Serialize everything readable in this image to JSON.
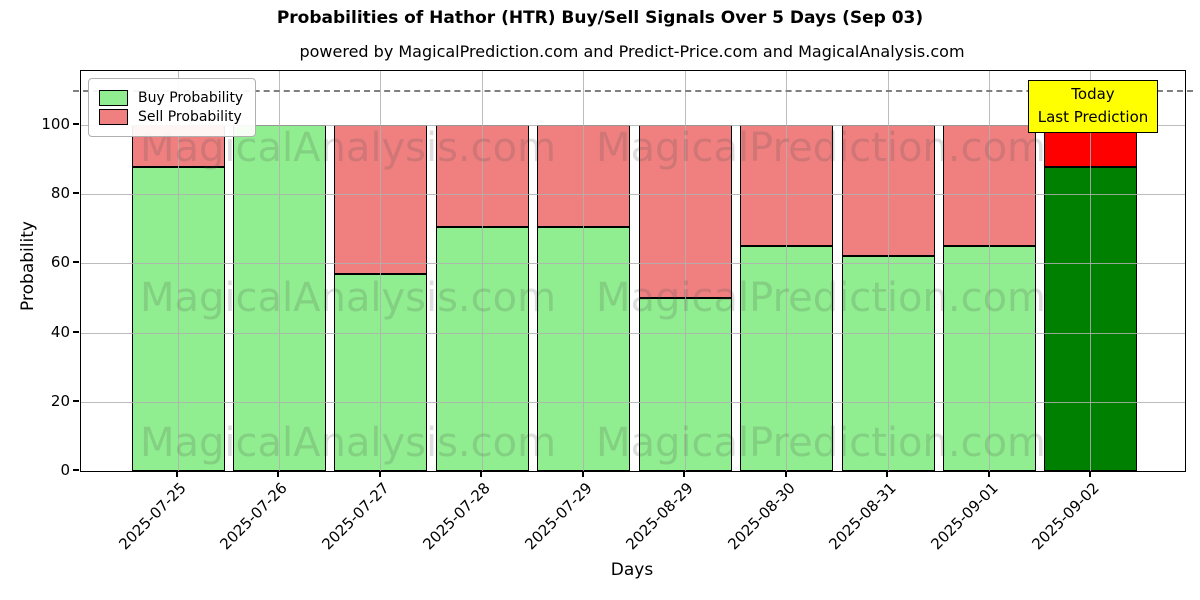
{
  "chart_data": {
    "type": "bar",
    "stacked": true,
    "title": "Probabilities of Hathor (HTR) Buy/Sell Signals Over 5 Days (Sep 03)",
    "subtitle": "powered by MagicalPrediction.com and Predict-Price.com and MagicalAnalysis.com",
    "xlabel": "Days",
    "ylabel": "Probability",
    "categories": [
      "2025-07-25",
      "2025-07-26",
      "2025-07-27",
      "2025-07-28",
      "2025-07-29",
      "2025-08-29",
      "2025-08-30",
      "2025-08-31",
      "2025-09-01",
      "2025-09-02"
    ],
    "series": [
      {
        "name": "Buy Probability",
        "color": "#90EE90",
        "values": [
          88,
          100,
          57,
          70.5,
          70.5,
          50,
          65,
          62,
          65,
          88
        ]
      },
      {
        "name": "Sell Probability",
        "color": "#F08080",
        "values": [
          12,
          0,
          43,
          29.5,
          29.5,
          50,
          35,
          38,
          35,
          12
        ]
      }
    ],
    "today": {
      "index": 9,
      "buy_color": "#008000",
      "sell_color": "#FF0000",
      "label_line1": "Today",
      "label_line2": "Last Prediction",
      "label_bg": "#FFFF00"
    },
    "yticks": [
      0,
      20,
      40,
      60,
      80,
      100
    ],
    "ylim": [
      0,
      115.6
    ],
    "dashed_line_y": 110,
    "dashed_line_color": "#7f7f7f",
    "grid": true,
    "legend_position": "upper left",
    "watermarks": [
      "MagicalAnalysis.com",
      "MagicalPrediction.com"
    ],
    "bar_edge_color": "#000000"
  }
}
